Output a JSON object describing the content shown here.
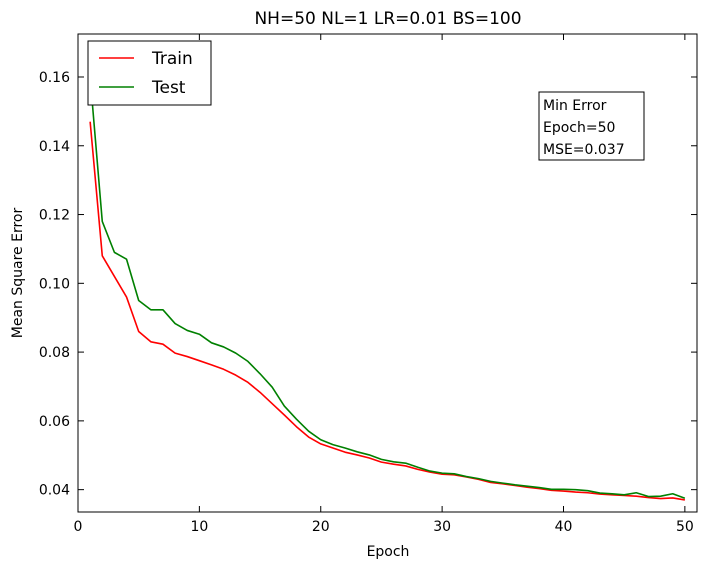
{
  "chart_data": {
    "type": "line",
    "title": "NH=50 NL=1 LR=0.01 BS=100",
    "xlabel": "Epoch",
    "ylabel": "Mean Square Error",
    "xlim": [
      0,
      51
    ],
    "ylim": [
      0.0335,
      0.1725
    ],
    "xticks": [
      0,
      10,
      20,
      30,
      40,
      50
    ],
    "yticks": [
      0.04,
      0.06,
      0.08,
      0.1,
      0.12,
      0.14,
      0.16
    ],
    "ytick_labels": [
      "0.04",
      "0.06",
      "0.08",
      "0.10",
      "0.12",
      "0.14",
      "0.16"
    ],
    "grid": false,
    "legend_position": "top-left",
    "x": [
      1,
      2,
      3,
      4,
      5,
      6,
      7,
      8,
      9,
      10,
      11,
      12,
      13,
      14,
      15,
      16,
      17,
      18,
      19,
      20,
      21,
      22,
      23,
      24,
      25,
      26,
      27,
      28,
      29,
      30,
      31,
      32,
      33,
      34,
      35,
      36,
      37,
      38,
      39,
      40,
      41,
      42,
      43,
      44,
      45,
      46,
      47,
      48,
      49,
      50
    ],
    "series": [
      {
        "name": "Train",
        "color": "#ff0000",
        "values": [
          0.147,
          0.108,
          0.102,
          0.096,
          0.086,
          0.083,
          0.0823,
          0.0797,
          0.0787,
          0.0775,
          0.0763,
          0.075,
          0.0733,
          0.0712,
          0.0683,
          0.065,
          0.0617,
          0.0583,
          0.0553,
          0.0533,
          0.0521,
          0.0509,
          0.0501,
          0.0492,
          0.048,
          0.0474,
          0.0469,
          0.0459,
          0.0451,
          0.0445,
          0.0443,
          0.0437,
          0.043,
          0.0421,
          0.0417,
          0.0412,
          0.0407,
          0.0403,
          0.0398,
          0.0396,
          0.0393,
          0.0391,
          0.0387,
          0.0385,
          0.0383,
          0.0381,
          0.0377,
          0.0374,
          0.0376,
          0.037
        ]
      },
      {
        "name": "Test",
        "color": "#008000",
        "values": [
          0.16,
          0.118,
          0.109,
          0.107,
          0.095,
          0.0923,
          0.0923,
          0.0883,
          0.0863,
          0.0852,
          0.0827,
          0.0815,
          0.0797,
          0.0773,
          0.0737,
          0.0698,
          0.0643,
          0.0605,
          0.057,
          0.0545,
          0.0531,
          0.0521,
          0.051,
          0.0501,
          0.0488,
          0.0481,
          0.0477,
          0.0465,
          0.0454,
          0.0448,
          0.0446,
          0.0438,
          0.0432,
          0.0424,
          0.0419,
          0.0414,
          0.041,
          0.0406,
          0.0401,
          0.0401,
          0.04,
          0.0397,
          0.039,
          0.0388,
          0.0385,
          0.0391,
          0.038,
          0.0381,
          0.0388,
          0.0375
        ]
      }
    ],
    "annotation": {
      "lines": [
        "Min Error",
        "Epoch=50",
        "MSE=0.037"
      ]
    }
  }
}
